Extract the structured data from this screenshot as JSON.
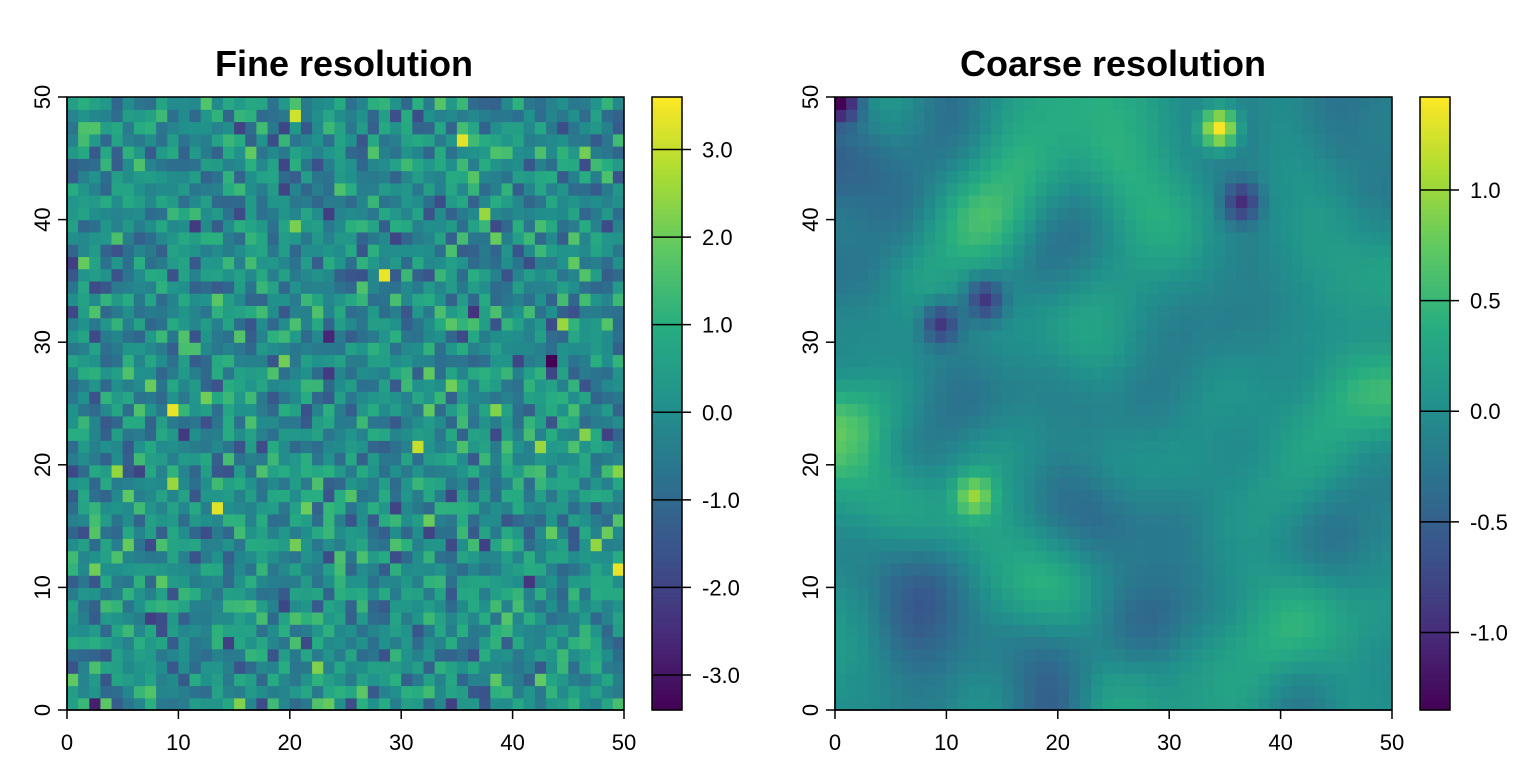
{
  "chart_data": [
    {
      "type": "heatmap",
      "title": "Fine resolution",
      "xlim": [
        0,
        50
      ],
      "ylim": [
        0,
        50
      ],
      "grid_size": 50,
      "x_ticks": [
        "0",
        "10",
        "20",
        "30",
        "40",
        "50"
      ],
      "y_ticks": [
        "0",
        "10",
        "20",
        "30",
        "40",
        "50"
      ],
      "color_range": [
        -3.4,
        3.6
      ],
      "colorbar_ticks": [
        {
          "value": 3.0,
          "label": "3.0"
        },
        {
          "value": 2.0,
          "label": "2.0"
        },
        {
          "value": 1.0,
          "label": "1.0"
        },
        {
          "value": 0.0,
          "label": "0.0"
        },
        {
          "value": -1.0,
          "label": "-1.0"
        },
        {
          "value": -2.0,
          "label": "-2.0"
        },
        {
          "value": -3.0,
          "label": "-3.0"
        }
      ],
      "colormap": "viridis",
      "texture": "fine-random-field",
      "notable_cells": [
        {
          "x": 9.5,
          "y": 24.5,
          "value": 3.4
        },
        {
          "x": 13.5,
          "y": 16.5,
          "value": 3.3
        },
        {
          "x": 28.5,
          "y": 35.5,
          "value": 3.4
        },
        {
          "x": 35.5,
          "y": 46.5,
          "value": 3.3
        },
        {
          "x": 20.5,
          "y": 48.5,
          "value": 3.1
        },
        {
          "x": 31.5,
          "y": 21.5,
          "value": 3.0
        },
        {
          "x": 49.5,
          "y": 11.5,
          "value": 3.4
        },
        {
          "x": 43.5,
          "y": 28.5,
          "value": -3.4
        },
        {
          "x": 2.5,
          "y": 0.5,
          "value": -2.8
        }
      ]
    },
    {
      "type": "heatmap",
      "title": "Coarse resolution",
      "xlim": [
        0,
        50
      ],
      "ylim": [
        0,
        50
      ],
      "grid_size": 50,
      "x_ticks": [
        "0",
        "10",
        "20",
        "30",
        "40",
        "50"
      ],
      "y_ticks": [
        "0",
        "10",
        "20",
        "30",
        "40",
        "50"
      ],
      "color_range": [
        -1.35,
        1.42
      ],
      "colorbar_ticks": [
        {
          "value": 1.0,
          "label": "1.0"
        },
        {
          "value": 0.5,
          "label": "0.5"
        },
        {
          "value": 0.0,
          "label": "0.0"
        },
        {
          "value": -0.5,
          "label": "-0.5"
        },
        {
          "value": -1.0,
          "label": "-1.0"
        }
      ],
      "colormap": "viridis",
      "texture": "smooth-random-field",
      "notable_cells": [
        {
          "x": 34.5,
          "y": 47.0,
          "value": 1.4
        },
        {
          "x": 12.5,
          "y": 17.0,
          "value": 1.0
        },
        {
          "x": 0.5,
          "y": 49.5,
          "value": -1.35
        },
        {
          "x": 36.5,
          "y": 41.0,
          "value": -1.0
        },
        {
          "x": 9.0,
          "y": 31.0,
          "value": -0.9
        },
        {
          "x": 13.0,
          "y": 33.0,
          "value": -0.9
        }
      ]
    }
  ]
}
